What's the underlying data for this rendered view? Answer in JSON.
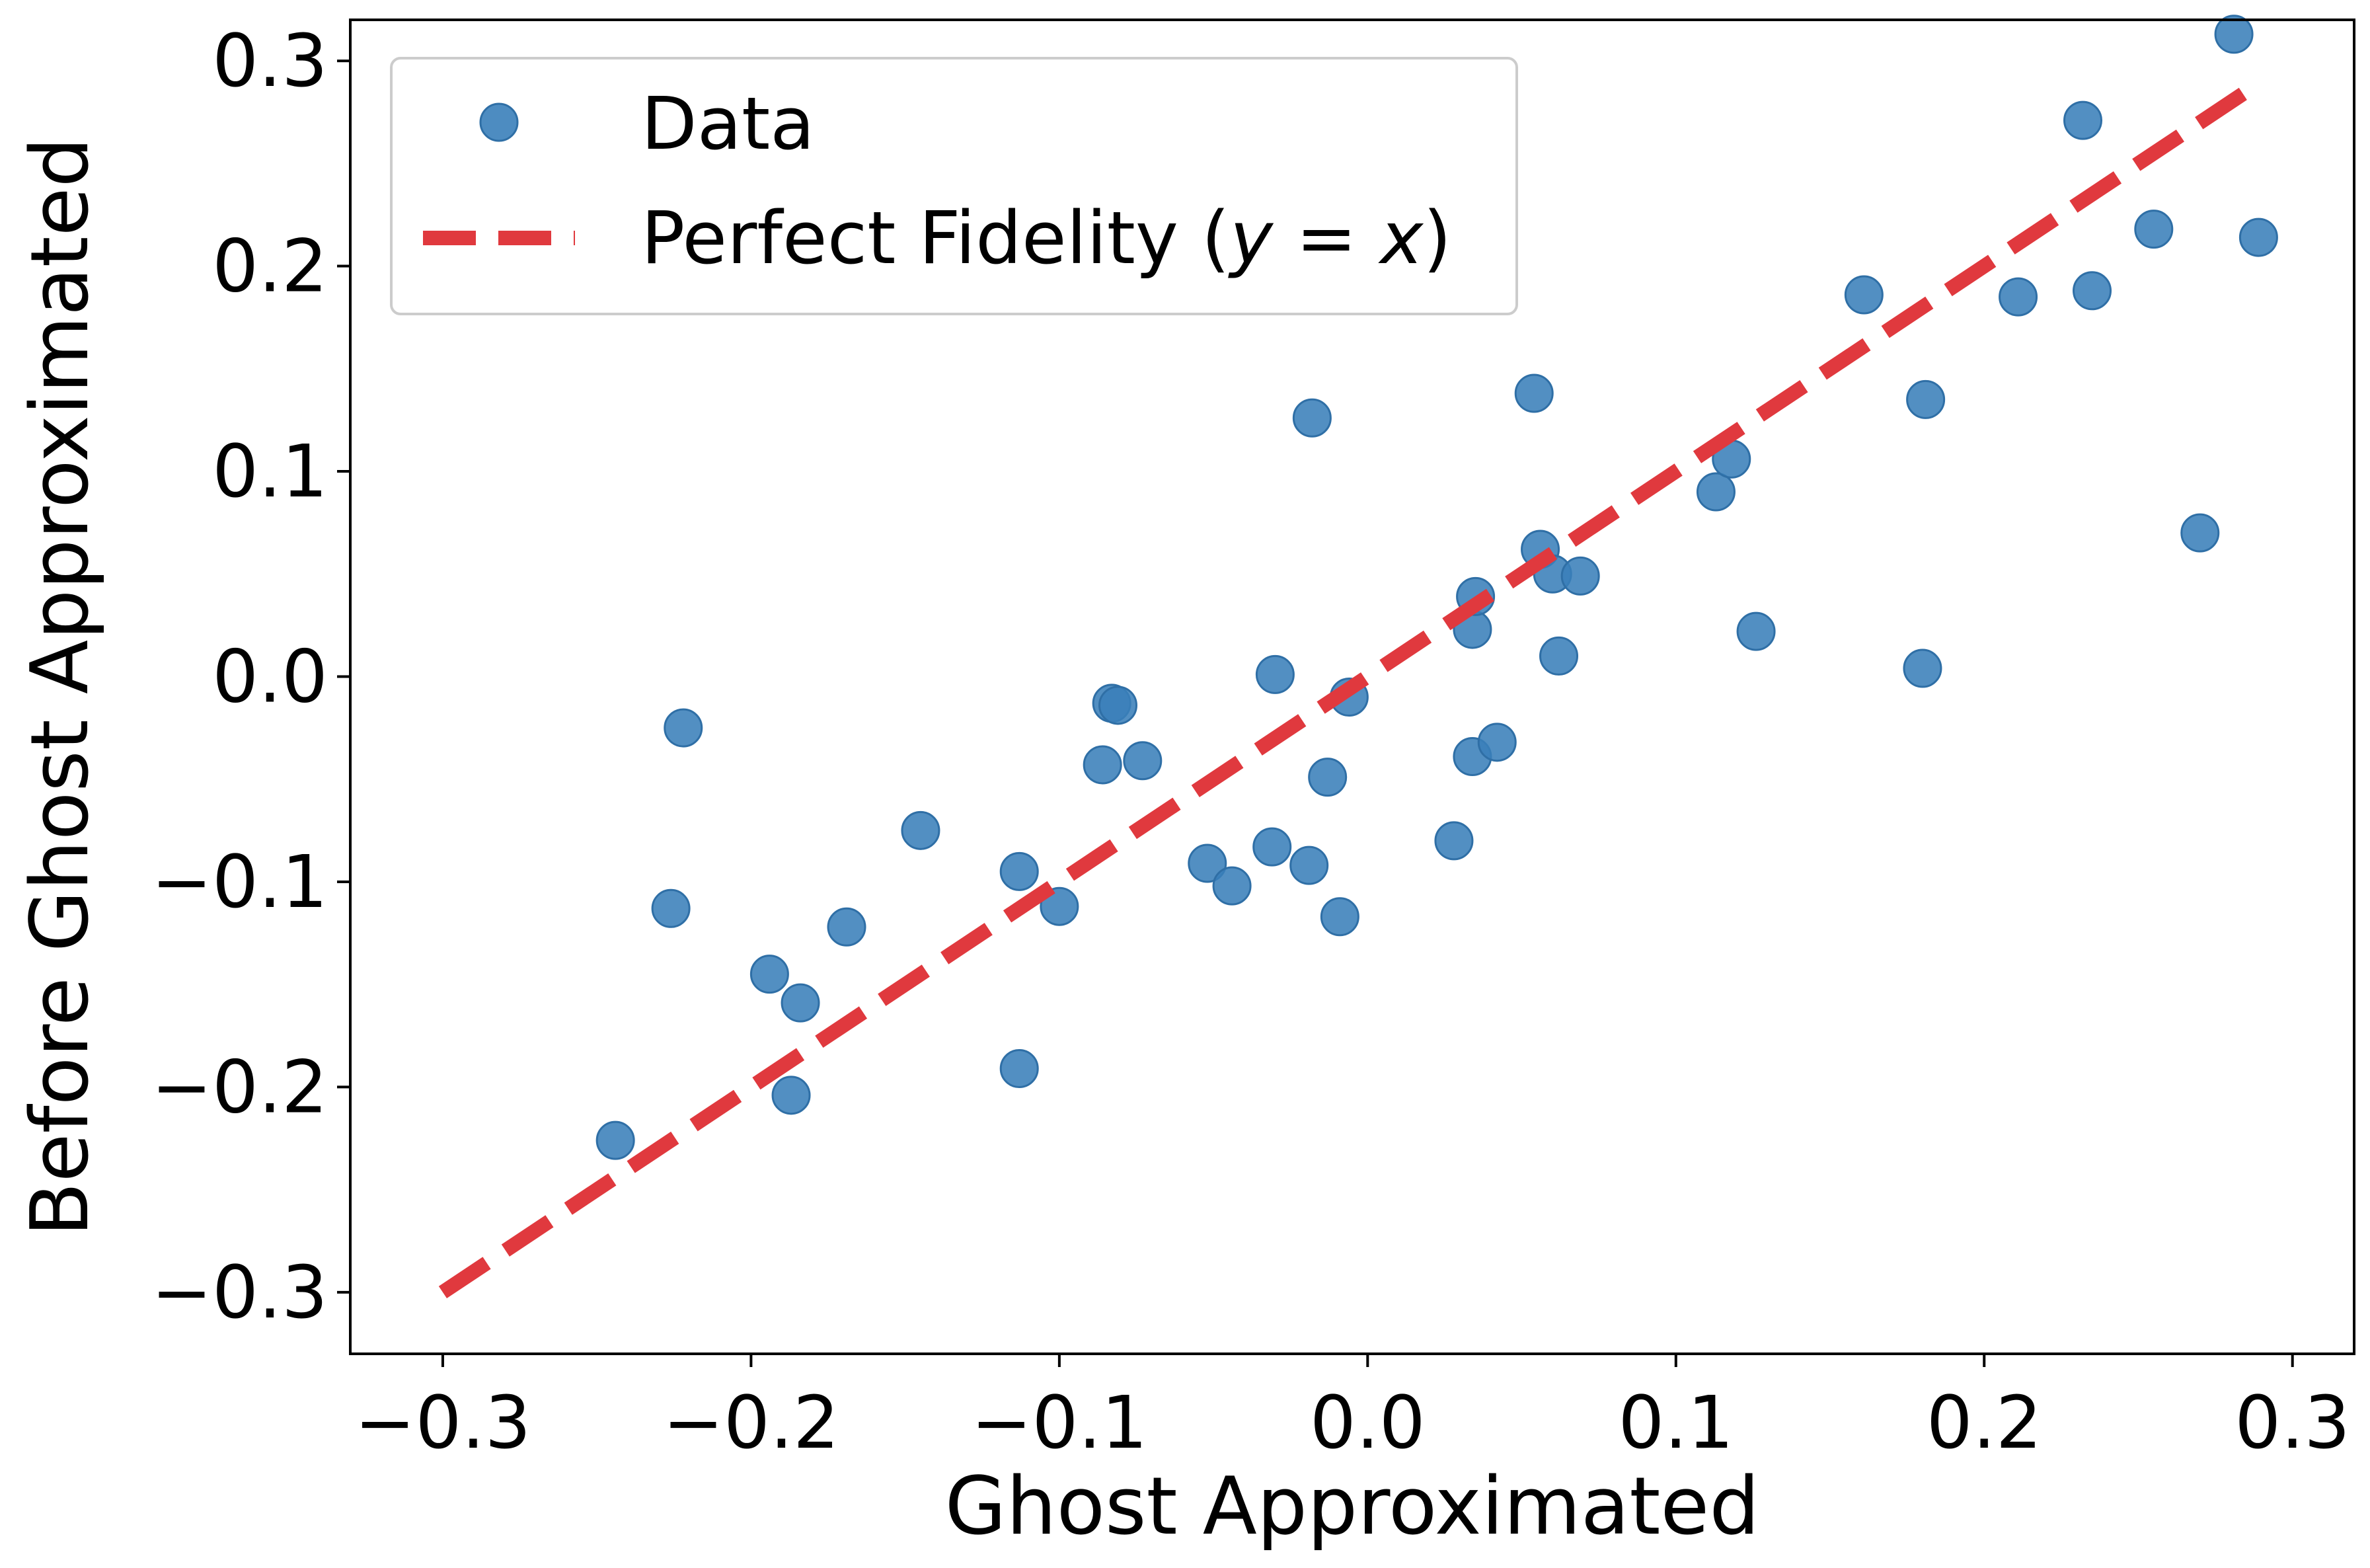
{
  "chart_data": {
    "type": "scatter",
    "xlabel": "Ghost Approximated",
    "ylabel": "Before Ghost Approximated",
    "xlim": [
      -0.33,
      0.32
    ],
    "ylim": [
      -0.33,
      0.32
    ],
    "xticks": [
      -0.3,
      -0.2,
      -0.1,
      0.0,
      0.1,
      0.2,
      0.3
    ],
    "yticks": [
      -0.3,
      -0.2,
      -0.1,
      0.0,
      0.1,
      0.2,
      0.3
    ],
    "xtick_labels": [
      "−0.3",
      "−0.2",
      "−0.1",
      "0.0",
      "0.1",
      "0.2",
      "0.3"
    ],
    "ytick_labels": [
      "−0.3",
      "−0.2",
      "−0.1",
      "0.0",
      "0.1",
      "0.2",
      "0.3"
    ],
    "grid": false,
    "legend_position": "upper-left",
    "colors": {
      "data": "#3a7fba",
      "fidelity": "#e0393e"
    },
    "series": [
      {
        "name": "Data",
        "kind": "scatter",
        "points": [
          [
            -0.244,
            -0.226
          ],
          [
            -0.226,
            -0.113
          ],
          [
            -0.222,
            -0.025
          ],
          [
            -0.194,
            -0.145
          ],
          [
            -0.187,
            -0.204
          ],
          [
            -0.184,
            -0.159
          ],
          [
            -0.169,
            -0.122
          ],
          [
            -0.145,
            -0.075
          ],
          [
            -0.113,
            -0.095
          ],
          [
            -0.113,
            -0.191
          ],
          [
            -0.1,
            -0.112
          ],
          [
            -0.086,
            -0.043
          ],
          [
            -0.083,
            -0.013
          ],
          [
            -0.081,
            -0.014
          ],
          [
            -0.073,
            -0.041
          ],
          [
            -0.052,
            -0.091
          ],
          [
            -0.044,
            -0.102
          ],
          [
            -0.031,
            -0.083
          ],
          [
            -0.03,
            0.001
          ],
          [
            -0.019,
            -0.092
          ],
          [
            -0.018,
            0.126
          ],
          [
            -0.013,
            -0.049
          ],
          [
            -0.009,
            -0.117
          ],
          [
            -0.006,
            -0.01
          ],
          [
            0.028,
            -0.08
          ],
          [
            0.034,
            0.023
          ],
          [
            0.034,
            -0.039
          ],
          [
            0.035,
            0.039
          ],
          [
            0.042,
            -0.032
          ],
          [
            0.054,
            0.138
          ],
          [
            0.056,
            0.062
          ],
          [
            0.06,
            0.05
          ],
          [
            0.062,
            0.01
          ],
          [
            0.069,
            0.049
          ],
          [
            0.113,
            0.09
          ],
          [
            0.118,
            0.106
          ],
          [
            0.126,
            0.022
          ],
          [
            0.161,
            0.186
          ],
          [
            0.18,
            0.004
          ],
          [
            0.181,
            0.135
          ],
          [
            0.211,
            0.185
          ],
          [
            0.232,
            0.271
          ],
          [
            0.235,
            0.188
          ],
          [
            0.255,
            0.218
          ],
          [
            0.27,
            0.07
          ],
          [
            0.281,
            0.313
          ],
          [
            0.289,
            0.214
          ]
        ]
      },
      {
        "name": "Perfect Fidelity (y = x)",
        "kind": "line",
        "style": "dashed",
        "x": [
          -0.3,
          0.29
        ],
        "y": [
          -0.3,
          0.29
        ]
      }
    ],
    "legend": {
      "data_label": "Data",
      "fidelity_prefix": "Perfect Fidelity (",
      "fidelity_y": "y",
      "fidelity_eq": " = ",
      "fidelity_x": "x",
      "fidelity_suffix": ")"
    }
  }
}
